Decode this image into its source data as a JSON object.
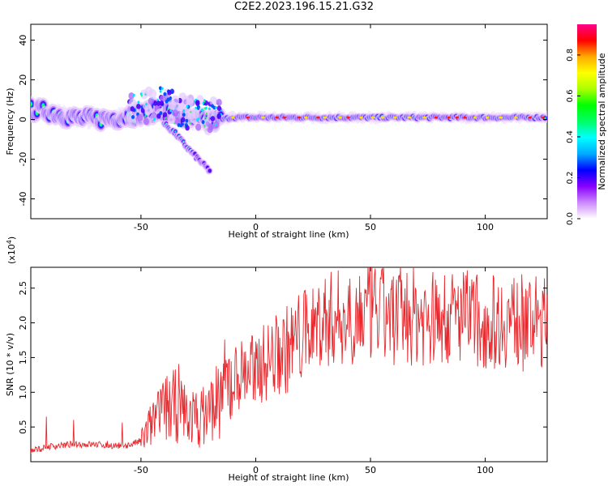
{
  "figure": {
    "title": "C2E2.2023.196.15.21.G32"
  },
  "chart_data": [
    {
      "type": "heatmap",
      "title": "",
      "xlabel": "Height of straight line (km)",
      "ylabel": "Frequency (Hz)",
      "xlim": [
        -98,
        127
      ],
      "ylim": [
        -50,
        48
      ],
      "xticks": [
        -50,
        0,
        50,
        100
      ],
      "yticks": [
        -40,
        -20,
        0,
        20,
        40
      ],
      "colorbar": {
        "label": "Normalized spectral amplitude",
        "range": [
          0,
          0.95
        ],
        "ticks": [
          0.0,
          0.2,
          0.4,
          0.6,
          0.8
        ],
        "colors": [
          "#ffffff",
          "#cc88ff",
          "#8800ff",
          "#0000ff",
          "#00aaff",
          "#00ffff",
          "#00ff66",
          "#00ff00",
          "#aaff00",
          "#ffff00",
          "#ffaa00",
          "#ff0000",
          "#ff0088"
        ]
      },
      "ridge": [
        {
          "x": -98,
          "f": 5
        },
        {
          "x": -90,
          "f": 4
        },
        {
          "x": -80,
          "f": 1
        },
        {
          "x": -70,
          "f": 0
        },
        {
          "x": -60,
          "f": 1
        },
        {
          "x": -50,
          "f": 3
        },
        {
          "x": -40,
          "f": 5
        },
        {
          "x": -30,
          "f": 0
        },
        {
          "x": -20,
          "f": -1
        },
        {
          "x": -10,
          "f": 1
        },
        {
          "x": 0,
          "f": 1
        },
        {
          "x": 50,
          "f": 1
        },
        {
          "x": 127,
          "f": 1
        }
      ],
      "branch": [
        {
          "x": -40,
          "f": -2
        },
        {
          "x": -35,
          "f": -7
        },
        {
          "x": -30,
          "f": -14
        },
        {
          "x": -25,
          "f": -20
        },
        {
          "x": -20,
          "f": -26
        }
      ]
    },
    {
      "type": "line",
      "title": "",
      "xlabel": "Height of straight line (km)",
      "ylabel": "SNR (10 * v/v)",
      "scale_label": "(x10",
      "scale_exp": "4",
      "scale_close": ")",
      "xlim": [
        -98,
        127
      ],
      "ylim": [
        0.0,
        2.8
      ],
      "xticks": [
        -50,
        0,
        50,
        100
      ],
      "yticks": [
        0.5,
        1.0,
        1.5,
        2.0,
        2.5
      ],
      "ytick_labels": [
        "0.5",
        "1.0",
        "1.5",
        "2.0",
        "2.5"
      ],
      "color": "#e8282d",
      "series": [
        {
          "x": [
            -98,
            -90,
            -80,
            -70,
            -60,
            -55,
            -50,
            -45,
            -40,
            -35,
            -30,
            -25,
            -20,
            -15,
            -10,
            -5,
            0,
            5,
            10,
            15,
            20,
            25,
            30,
            40,
            50,
            60,
            70,
            80,
            90,
            100,
            110,
            120,
            127
          ],
          "values": [
            0.15,
            0.22,
            0.25,
            0.25,
            0.23,
            0.24,
            0.3,
            0.55,
            0.75,
            0.8,
            0.7,
            0.6,
            0.75,
            1.0,
            1.2,
            1.3,
            1.35,
            1.45,
            1.55,
            1.65,
            1.8,
            1.95,
            2.05,
            2.1,
            2.15,
            2.1,
            2.1,
            2.05,
            2.1,
            2.0,
            2.05,
            2.0,
            2.0
          ]
        }
      ]
    }
  ]
}
